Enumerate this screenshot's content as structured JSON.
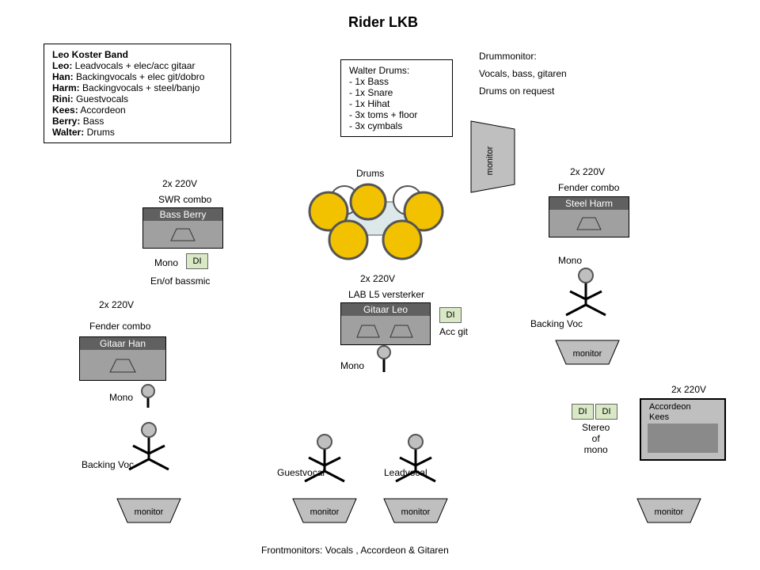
{
  "title": "Rider LKB",
  "colors": {
    "amp_head": "#606060",
    "amp_body": "#a0a0a0",
    "di": "#d9e8c5",
    "drum_yellow": "#f2c200",
    "drum_rim": "#555555",
    "mon_fill": "#bfbfbf",
    "bigamp_outer": "#bfbfbf",
    "bigamp_inner": "#8a8a8a"
  },
  "band_box": {
    "heading": "Leo Koster Band",
    "lines": [
      {
        "n": "Leo:",
        "r": " Leadvocals + elec/acc gitaar"
      },
      {
        "n": "Han:",
        "r": " Backingvocals + elec git/dobro"
      },
      {
        "n": "Harm:",
        "r": " Backingvocals + steel/banjo"
      },
      {
        "n": "Rini:",
        "r": " Guestvocals"
      },
      {
        "n": "Kees:",
        "r": " Accordeon"
      },
      {
        "n": "Berry:",
        "r": " Bass"
      },
      {
        "n": "Walter:",
        "r": " Drums"
      }
    ]
  },
  "drums_box": {
    "heading": "Walter Drums:",
    "items": [
      "- 1x Bass",
      "- 1x Snare",
      "- 1x Hihat",
      "- 3x toms + floor",
      "- 3x cymbals"
    ]
  },
  "drummonitor": {
    "heading": "Drummonitor:",
    "l1": "Vocals, bass, gitaren",
    "l2": "Drums on request"
  },
  "labels": {
    "drums": "Drums",
    "v220": "2x 220V",
    "swr": "SWR combo",
    "fender": "Fender combo",
    "lab": "LAB L5 versterker",
    "mono": "Mono",
    "accgit": "Acc git",
    "enof": "En/of bassmic",
    "backing": "Backing Voc",
    "guest": "Guestvocal",
    "lead": "Leadvocal",
    "stereo": "Stereo\nof\nmono",
    "front": "Frontmonitors: Vocals , Accordeon & Gitaren",
    "di": "DI",
    "monitor": "monitor"
  },
  "amps": {
    "bass": {
      "label": "Bass Berry"
    },
    "steel": {
      "label": "Steel Harm"
    },
    "gitleo": {
      "label": "Gitaar Leo"
    },
    "githan": {
      "label": "Gitaar Han"
    },
    "accordeon": {
      "l1": "Accordeon",
      "l2": "Kees"
    }
  }
}
